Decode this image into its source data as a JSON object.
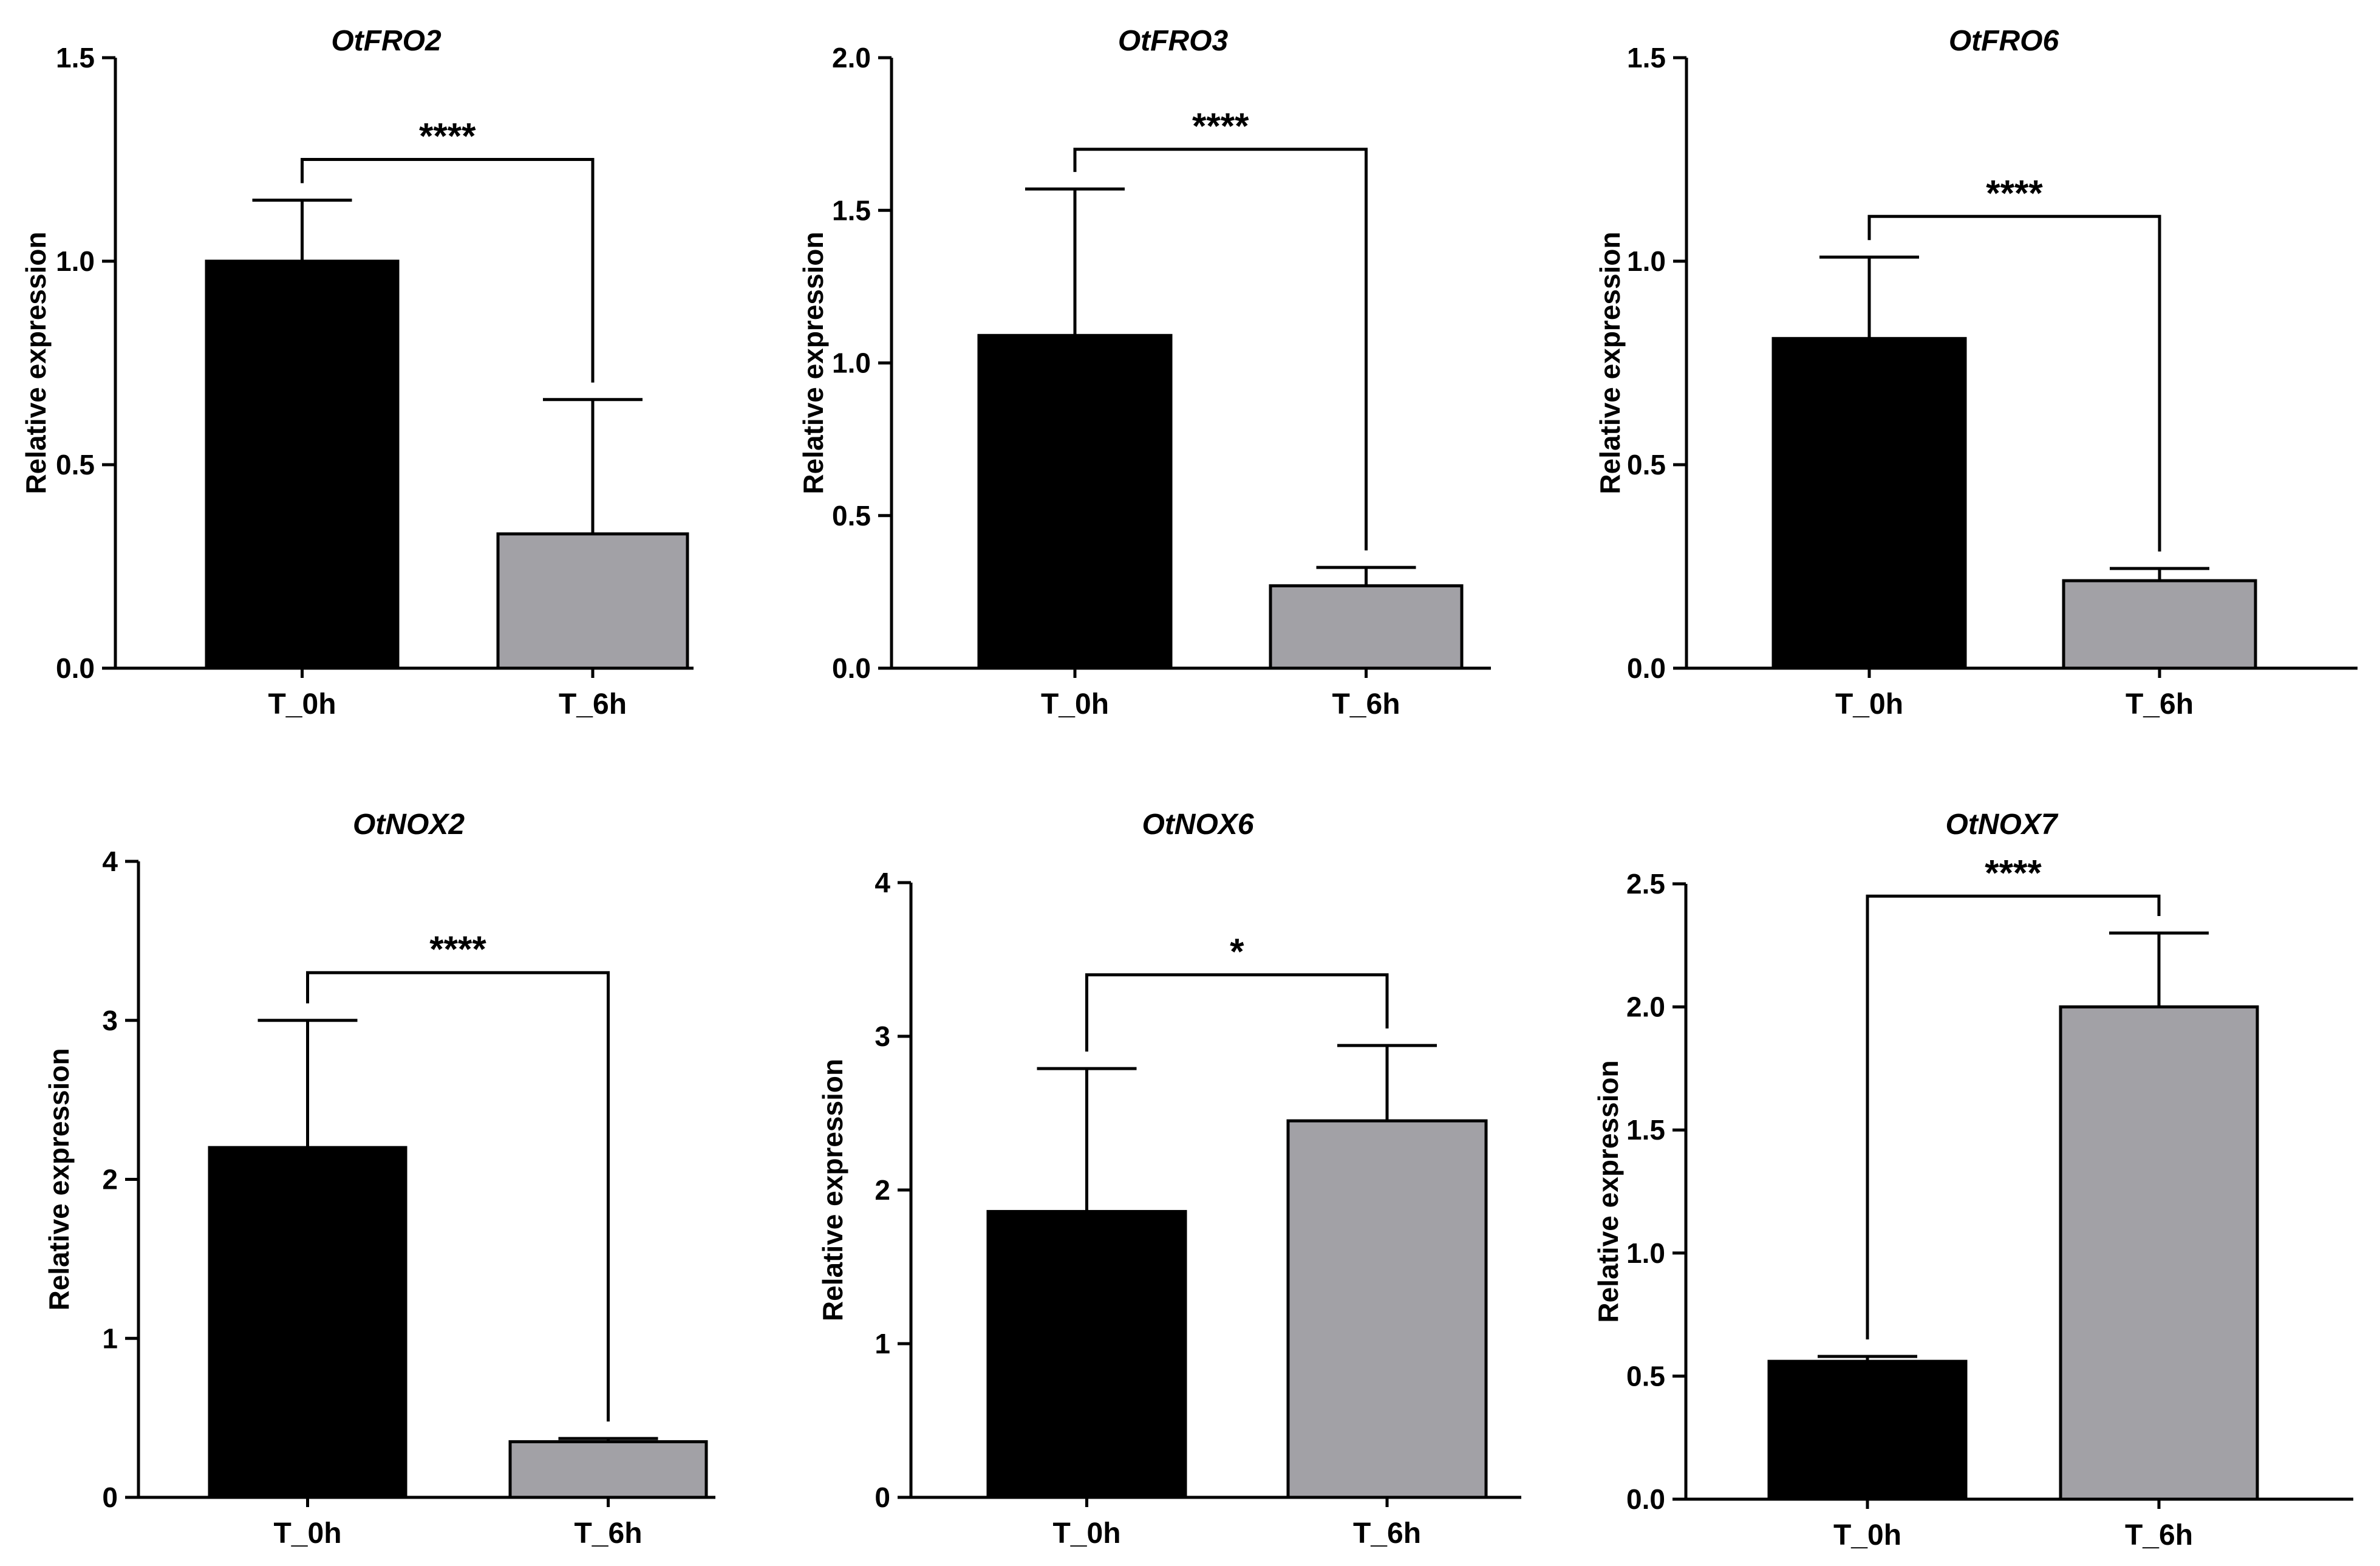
{
  "colors": {
    "bar_t0": "#000000",
    "bar_t6": "#a2a1a6",
    "axis": "#000000"
  },
  "chart_data": [
    {
      "type": "bar",
      "title": "OtFRO2",
      "xlabel": "",
      "ylabel": "Relative expression",
      "ylim": [
        0,
        1.5
      ],
      "yticks": [
        "0.0",
        "0.5",
        "1.0",
        "1.5"
      ],
      "categories": [
        "T_0h",
        "T_6h"
      ],
      "values": [
        1.0,
        0.33
      ],
      "errors": [
        0.15,
        0.33
      ],
      "significance": "****",
      "bracket_y": 1.25
    },
    {
      "type": "bar",
      "title": "OtFRO3",
      "xlabel": "",
      "ylabel": "Relative expression",
      "ylim": [
        0,
        2.0
      ],
      "yticks": [
        "0.0",
        "0.5",
        "1.0",
        "1.5",
        "2.0"
      ],
      "categories": [
        "T_0h",
        "T_6h"
      ],
      "values": [
        1.09,
        0.27
      ],
      "errors": [
        0.48,
        0.06
      ],
      "significance": "****",
      "bracket_y": 1.7
    },
    {
      "type": "bar",
      "title": "OtFRO6",
      "xlabel": "",
      "ylabel": "Relative expression",
      "ylim": [
        0,
        1.5
      ],
      "yticks": [
        "0.0",
        "0.5",
        "1.0",
        "1.5"
      ],
      "categories": [
        "T_0h",
        "T_6h"
      ],
      "values": [
        0.81,
        0.215
      ],
      "errors": [
        0.2,
        0.03
      ],
      "significance": "****",
      "bracket_y": 1.11
    },
    {
      "type": "bar",
      "title": "OtNOX2",
      "xlabel": "",
      "ylabel": "Relative expression",
      "ylim": [
        0,
        4
      ],
      "yticks": [
        "0",
        "1",
        "2",
        "3",
        "4"
      ],
      "categories": [
        "T_0h",
        "T_6h"
      ],
      "values": [
        2.2,
        0.35
      ],
      "errors": [
        0.8,
        0.02
      ],
      "significance": "****",
      "bracket_y": 3.3
    },
    {
      "type": "bar",
      "title": "OtNOX6",
      "xlabel": "",
      "ylabel": "Relative expression",
      "ylim": [
        0,
        4
      ],
      "yticks": [
        "0",
        "1",
        "2",
        "3",
        "4"
      ],
      "categories": [
        "T_0h",
        "T_6h"
      ],
      "values": [
        1.86,
        2.45
      ],
      "errors": [
        0.93,
        0.49
      ],
      "significance": "*",
      "bracket_y": 3.4
    },
    {
      "type": "bar",
      "title": "OtNOX7",
      "xlabel": "",
      "ylabel": "Relative expression",
      "ylim": [
        0,
        2.5
      ],
      "yticks": [
        "0.0",
        "0.5",
        "1.0",
        "1.5",
        "2.0",
        "2.5"
      ],
      "categories": [
        "T_0h",
        "T_6h"
      ],
      "values": [
        0.56,
        2.0
      ],
      "errors": [
        0.02,
        0.3
      ],
      "significance": "****",
      "bracket_y": 2.45
    }
  ]
}
